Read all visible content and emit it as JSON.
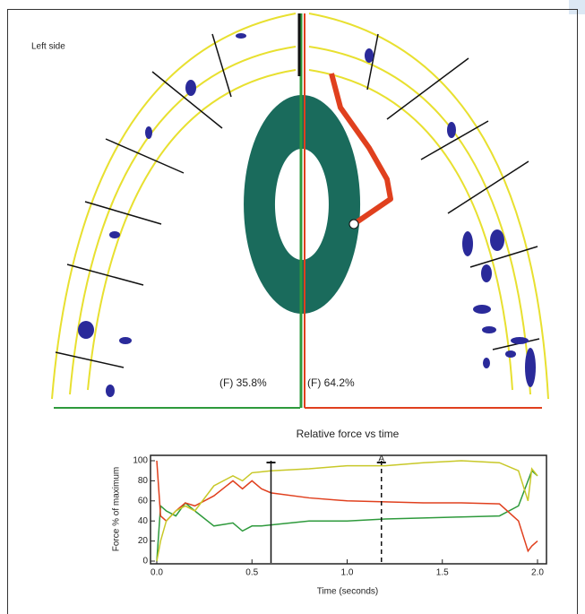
{
  "diagram": {
    "left_label": "Left side",
    "left_force": "(F) 35.8%",
    "right_force": "(F) 64.2%"
  },
  "chart_data": {
    "type": "line",
    "title": "Relative force vs time",
    "x_label": "Time (seconds)",
    "y_label": "Force % of maximum",
    "x": [
      0,
      0.02,
      0.05,
      0.1,
      0.15,
      0.2,
      0.3,
      0.4,
      0.45,
      0.5,
      0.55,
      0.6,
      0.8,
      1.0,
      1.2,
      1.4,
      1.6,
      1.8,
      1.9,
      1.95,
      1.97,
      2.0
    ],
    "series": [
      {
        "color": "#2e9a3c",
        "values": [
          0,
          55,
          50,
          45,
          58,
          50,
          35,
          38,
          30,
          35,
          35,
          36,
          40,
          40,
          42,
          43,
          44,
          45,
          55,
          80,
          90,
          85
        ]
      },
      {
        "color": "#e0401e",
        "values": [
          100,
          45,
          40,
          50,
          58,
          55,
          65,
          80,
          72,
          80,
          72,
          68,
          63,
          60,
          59,
          58,
          58,
          57,
          40,
          10,
          15,
          20
        ]
      },
      {
        "color": "#c8c828",
        "values": [
          0,
          20,
          40,
          50,
          55,
          50,
          75,
          85,
          80,
          88,
          89,
          90,
          92,
          95,
          95,
          98,
          100,
          98,
          90,
          60,
          92,
          85
        ]
      }
    ],
    "markers": [
      {
        "x": 0.6,
        "style": "solid"
      },
      {
        "x": 1.18,
        "style": "dashed",
        "label": "A"
      }
    ],
    "xlim": [
      0,
      2
    ],
    "xticks": [
      {
        "value": 0,
        "label": "0.0"
      },
      {
        "value": 0.5,
        "label": "0.5"
      },
      {
        "value": 1,
        "label": "1.0"
      },
      {
        "value": 1.5,
        "label": "1.5"
      },
      {
        "value": 2,
        "label": "2.0"
      }
    ],
    "ylim": [
      0,
      100
    ],
    "yticks": [
      0,
      20,
      40,
      60,
      80,
      100
    ]
  }
}
